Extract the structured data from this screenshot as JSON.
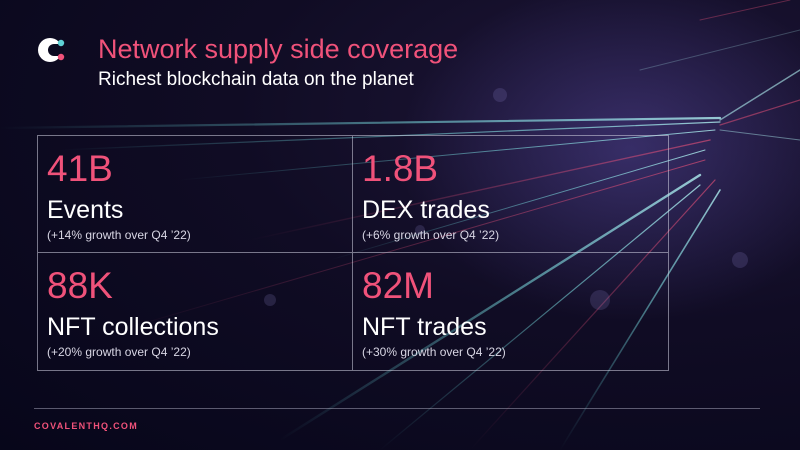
{
  "theme": {
    "accent": "#f0527a",
    "teal": "#5fd3d6",
    "background": "#0b0a20"
  },
  "logo": {
    "icon": "covalent-logo-icon"
  },
  "header": {
    "title": "Network supply side coverage",
    "subtitle": "Richest blockchain data on the planet"
  },
  "stats": [
    {
      "value": "41B",
      "label": "Events",
      "growth": "(+14% growth over Q4 ’22)"
    },
    {
      "value": "1.8B",
      "label": "DEX trades",
      "growth": "(+6% growth over Q4 ’22)"
    },
    {
      "value": "88K",
      "label": "NFT collections",
      "growth": "(+20% growth over Q4 ’22)"
    },
    {
      "value": "82M",
      "label": "NFT trades",
      "growth": "(+30% growth over Q4 ’22)"
    }
  ],
  "footer": {
    "site": "COVALENTHQ.COM"
  }
}
